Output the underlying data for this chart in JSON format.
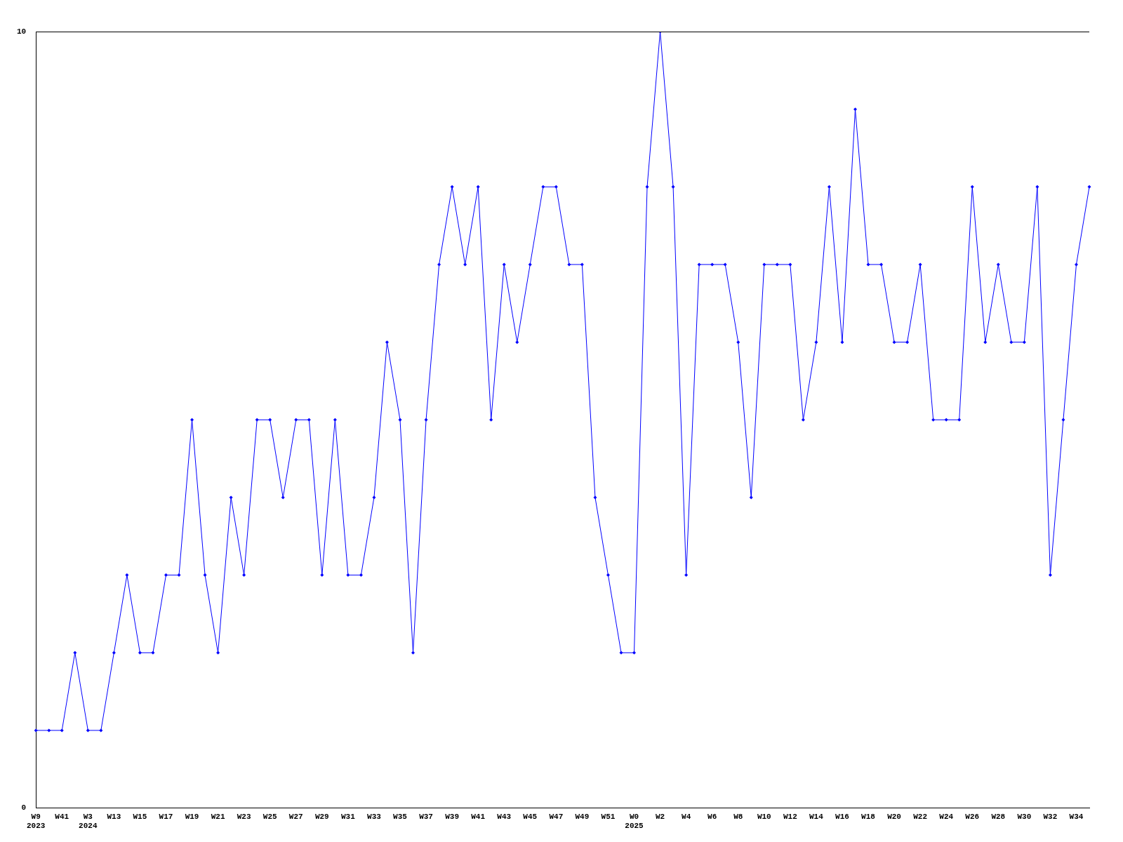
{
  "chart_data": {
    "type": "line",
    "categories": [
      "W9\n2023",
      null,
      "W41",
      null,
      "W3\n2024",
      null,
      "W13",
      null,
      "W15",
      null,
      "W17",
      null,
      "W19",
      null,
      "W21",
      null,
      "W23",
      null,
      "W25",
      null,
      "W27",
      null,
      "W29",
      null,
      "W31",
      null,
      "W33",
      null,
      "W35",
      null,
      "W37",
      null,
      "W39",
      null,
      "W41",
      null,
      "W43",
      null,
      "W45",
      null,
      "W47",
      null,
      "W49",
      null,
      "W51",
      null,
      "W0\n2025",
      null,
      "W2",
      null,
      "W4",
      null,
      "W6",
      null,
      "W8",
      null,
      "W10",
      null,
      "W12",
      null,
      "W14",
      null,
      "W16",
      null,
      "W18",
      null,
      "W20",
      null,
      "W22",
      null,
      "W24",
      null,
      "W26",
      null,
      "W28",
      null,
      "W30",
      null,
      "W32",
      null,
      "W34",
      null
    ],
    "series": [
      {
        "color": "#0000ff",
        "values": [
          1,
          1,
          1,
          2,
          1,
          1,
          2,
          3,
          2,
          2,
          3,
          3,
          5,
          3,
          2,
          4,
          3,
          5,
          5,
          4,
          5,
          5,
          3,
          5,
          3,
          3,
          4,
          6,
          5,
          2,
          5,
          7,
          8,
          7,
          8,
          5,
          7,
          6,
          7,
          8,
          8,
          7,
          7,
          4,
          3,
          2,
          2,
          8,
          10,
          8,
          3,
          7,
          7,
          7,
          6,
          4,
          7,
          7,
          7,
          5,
          6,
          8,
          6,
          9,
          7,
          7,
          6,
          6,
          7,
          5,
          5,
          5,
          8,
          6,
          7,
          6,
          6,
          8,
          3,
          5,
          7,
          8
        ]
      }
    ],
    "ylim": [
      0,
      10
    ],
    "yticks": [
      0,
      10
    ],
    "grid": false,
    "legend": false,
    "marker": "diamond",
    "line_style": "solid"
  }
}
